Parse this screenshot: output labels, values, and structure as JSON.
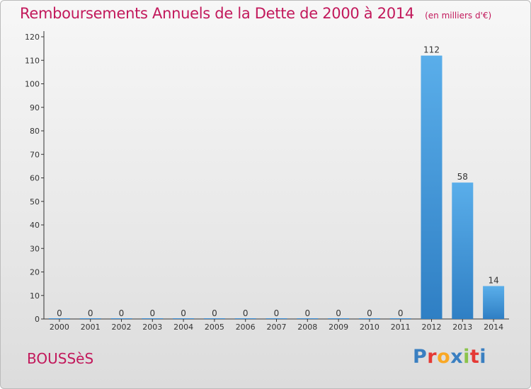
{
  "header": {
    "title": "Remboursements Annuels de la Dette de 2000 à 2014",
    "unit": "(en milliers d'€)"
  },
  "footer": {
    "commune": "BOUSSèS",
    "logo": "Proxiti",
    "logo_colors": [
      "#3a7fc1",
      "#e53935",
      "#f9a825",
      "#3a7fc1",
      "#8bc34a",
      "#e53935",
      "#3a7fc1"
    ]
  },
  "chart_data": {
    "type": "bar",
    "title": "Remboursements Annuels de la Dette de 2000 à 2014",
    "categories": [
      "2000",
      "2001",
      "2002",
      "2003",
      "2004",
      "2005",
      "2006",
      "2007",
      "2008",
      "2009",
      "2010",
      "2011",
      "2012",
      "2013",
      "2014"
    ],
    "values": [
      0,
      0,
      0,
      0,
      0,
      0,
      0,
      0,
      0,
      0,
      0,
      0,
      112,
      58,
      14
    ],
    "ylim": [
      0,
      120
    ],
    "yticks": [
      0,
      10,
      20,
      30,
      40,
      50,
      60,
      70,
      80,
      90,
      100,
      110,
      120
    ],
    "grid": false,
    "bar_color": "#3d8fd6",
    "bar_color_light": "#5aaeea"
  }
}
